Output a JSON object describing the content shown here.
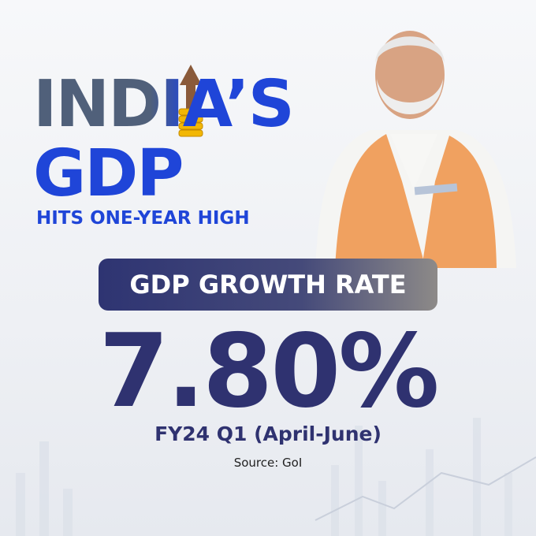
{
  "header": {
    "title_line1": "INDIA’S",
    "title_line2": "GDP",
    "subtitle": "HITS ONE-YEAR HIGH"
  },
  "metric": {
    "label": "GDP GROWTH RATE",
    "value": "7.80%",
    "period": "FY24 Q1 (April-June)",
    "source": "Source: GoI"
  }
}
